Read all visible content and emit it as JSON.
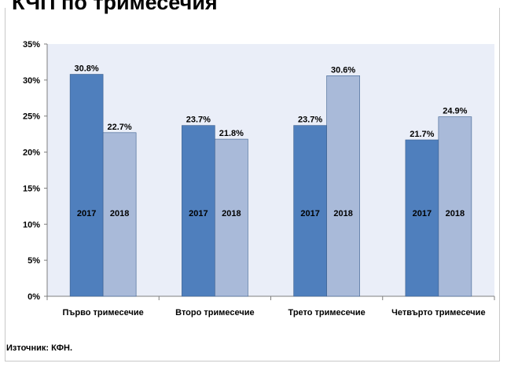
{
  "header": {
    "title": "КЧП по тримесечия"
  },
  "footer": {
    "source": "Източник: КФН."
  },
  "colors": {
    "series_2017": "#4f7fbd",
    "series_2018": "#a9bad9",
    "plot_bg": "#eaeef8"
  },
  "chart_data": {
    "type": "bar",
    "title": "",
    "xlabel": "",
    "ylabel": "",
    "ylim": [
      0,
      35
    ],
    "yticks": [
      "0%",
      "5%",
      "10%",
      "15%",
      "20%",
      "25%",
      "30%",
      "35%"
    ],
    "grid": false,
    "legend": "none",
    "categories": [
      "Първо тримесечие",
      "Второ тримесечие",
      "Трето тримесечие",
      "Четвърто тримесечие"
    ],
    "series": [
      {
        "name": "2017",
        "values": [
          30.8,
          23.7,
          23.7,
          21.7
        ],
        "labels": [
          "30.8%",
          "23.7%",
          "23.7%",
          "21.7%"
        ]
      },
      {
        "name": "2018",
        "values": [
          22.7,
          21.8,
          30.6,
          24.9
        ],
        "labels": [
          "22.7%",
          "21.8%",
          "30.6%",
          "24.9%"
        ]
      }
    ]
  }
}
